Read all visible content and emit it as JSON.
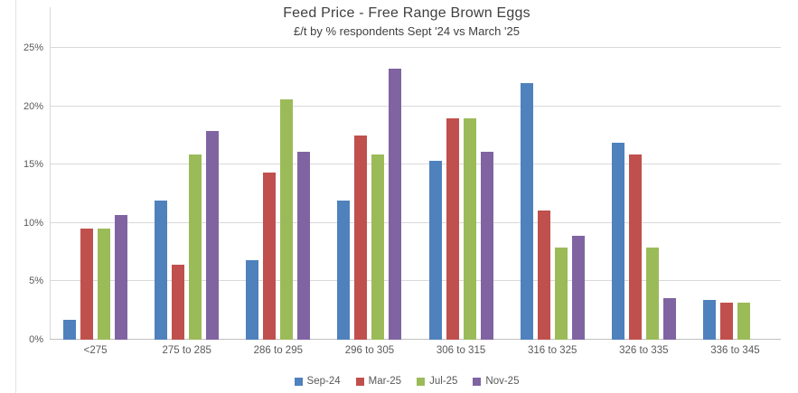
{
  "header": {
    "title": "Feed Price - Free Range Brown Eggs",
    "subtitle": "£/t by % respondents Sept '24 vs March '25"
  },
  "chart_data": {
    "type": "bar",
    "title": "Feed Price - Free Range Brown Eggs",
    "subtitle": "£/t by % respondents Sept '24 vs March '25",
    "categories": [
      "<275",
      "275 to 285",
      "286 to 295",
      "296 to 305",
      "306 to 315",
      "316 to 325",
      "326 to 335",
      "336 to 345"
    ],
    "series": [
      {
        "name": "Sep-24",
        "color": "#4F81BD",
        "values": [
          1.7,
          11.9,
          6.8,
          11.9,
          15.3,
          22.0,
          16.9,
          3.4
        ]
      },
      {
        "name": "Mar-25",
        "color": "#C0504D",
        "values": [
          9.5,
          6.4,
          14.3,
          17.5,
          19.0,
          11.1,
          15.9,
          3.2
        ]
      },
      {
        "name": "Jul-25",
        "color": "#9BBB59",
        "values": [
          9.5,
          15.9,
          20.6,
          15.9,
          19.0,
          7.9,
          7.9,
          3.2
        ]
      },
      {
        "name": "Nov-25",
        "color": "#8064A2",
        "values": [
          10.7,
          17.9,
          16.1,
          23.2,
          16.1,
          8.9,
          3.6,
          0
        ]
      }
    ],
    "xlabel": "",
    "ylabel": "",
    "ylim": [
      0,
      25
    ],
    "ytick_step": 5,
    "yticks": [
      "0%",
      "5%",
      "10%",
      "15%",
      "20%",
      "25%"
    ],
    "grid": true,
    "legend_position": "bottom"
  },
  "colors": {
    "gridline": "#D9D9D9",
    "zero_axis_line": "#BFBFBF",
    "axis_text": "#595959",
    "title_text": "#404040",
    "background": "#FFFFFF"
  }
}
